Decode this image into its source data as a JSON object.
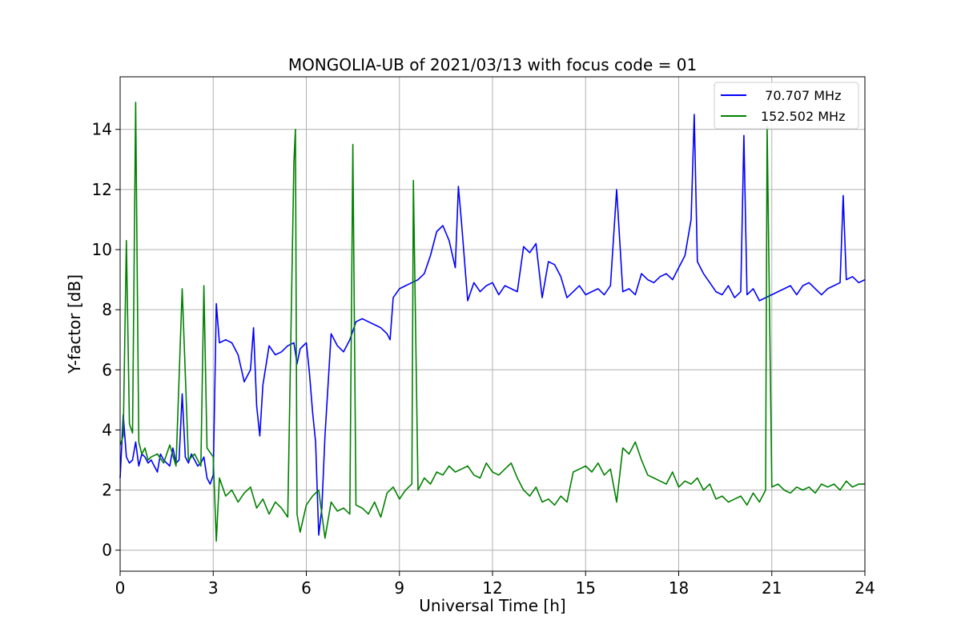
{
  "chart_data": {
    "type": "line",
    "title": "MONGOLIA-UB of 2021/03/13 with focus code = 01",
    "xlabel": "Universal Time [h]",
    "ylabel": "Y-factor [dB]",
    "xlim": [
      0,
      24
    ],
    "ylim": [
      -0.7,
      15.75
    ],
    "xticks": [
      0,
      3,
      6,
      9,
      12,
      15,
      18,
      21,
      24
    ],
    "yticks": [
      0,
      2,
      4,
      6,
      8,
      10,
      12,
      14
    ],
    "grid": true,
    "legend_position": "top-right",
    "series": [
      {
        "name": "  70.707 MHz",
        "color": "#0000ff",
        "x": [
          0.0,
          0.1,
          0.2,
          0.3,
          0.4,
          0.5,
          0.6,
          0.7,
          0.8,
          0.9,
          1.0,
          1.1,
          1.2,
          1.3,
          1.4,
          1.5,
          1.6,
          1.7,
          1.8,
          1.9,
          2.0,
          2.1,
          2.2,
          2.3,
          2.4,
          2.5,
          2.6,
          2.7,
          2.8,
          2.9,
          3.0,
          3.1,
          3.2,
          3.4,
          3.6,
          3.8,
          4.0,
          4.2,
          4.3,
          4.4,
          4.5,
          4.6,
          4.8,
          5.0,
          5.2,
          5.4,
          5.6,
          5.7,
          5.8,
          6.0,
          6.1,
          6.2,
          6.3,
          6.4,
          6.5,
          6.6,
          6.8,
          7.0,
          7.2,
          7.4,
          7.6,
          7.8,
          8.0,
          8.2,
          8.4,
          8.6,
          8.7,
          8.8,
          9.0,
          9.2,
          9.4,
          9.6,
          9.8,
          10.0,
          10.2,
          10.4,
          10.6,
          10.8,
          10.9,
          11.0,
          11.2,
          11.4,
          11.6,
          11.8,
          12.0,
          12.2,
          12.4,
          12.6,
          12.8,
          13.0,
          13.2,
          13.4,
          13.6,
          13.8,
          14.0,
          14.2,
          14.4,
          14.6,
          14.8,
          15.0,
          15.2,
          15.4,
          15.6,
          15.8,
          16.0,
          16.2,
          16.4,
          16.6,
          16.8,
          17.0,
          17.2,
          17.4,
          17.6,
          17.8,
          18.0,
          18.2,
          18.4,
          18.5,
          18.6,
          18.8,
          19.0,
          19.2,
          19.4,
          19.6,
          19.8,
          20.0,
          20.1,
          20.2,
          20.4,
          20.6,
          20.8,
          21.0,
          21.2,
          21.4,
          21.6,
          21.8,
          22.0,
          22.2,
          22.4,
          22.6,
          22.8,
          23.0,
          23.2,
          23.3,
          23.4,
          23.6,
          23.8,
          24.0
        ],
        "y": [
          2.4,
          4.5,
          3.1,
          2.9,
          3.0,
          3.6,
          2.8,
          3.2,
          3.1,
          2.9,
          3.0,
          2.8,
          2.6,
          3.2,
          3.0,
          2.9,
          2.8,
          3.4,
          2.9,
          3.0,
          5.2,
          3.1,
          2.9,
          3.2,
          3.0,
          2.8,
          2.9,
          3.1,
          2.4,
          2.2,
          2.5,
          8.2,
          6.9,
          7.0,
          6.9,
          6.5,
          5.6,
          6.0,
          7.4,
          4.8,
          3.8,
          5.5,
          6.8,
          6.5,
          6.6,
          6.8,
          6.9,
          6.2,
          6.7,
          6.9,
          5.9,
          4.6,
          3.6,
          0.5,
          1.4,
          3.8,
          7.2,
          6.8,
          6.6,
          7.0,
          7.6,
          7.7,
          7.6,
          7.5,
          7.4,
          7.2,
          7.0,
          8.4,
          8.7,
          8.8,
          8.9,
          9.0,
          9.2,
          9.8,
          10.6,
          10.8,
          10.3,
          9.4,
          12.1,
          10.9,
          8.3,
          8.9,
          8.6,
          8.8,
          8.9,
          8.5,
          8.8,
          8.7,
          8.6,
          10.1,
          9.9,
          10.2,
          8.4,
          9.6,
          9.5,
          9.1,
          8.4,
          8.6,
          8.8,
          8.5,
          8.6,
          8.7,
          8.5,
          8.8,
          12.0,
          8.6,
          8.7,
          8.5,
          9.2,
          9.0,
          8.9,
          9.1,
          9.2,
          9.0,
          9.4,
          9.8,
          11.0,
          14.5,
          9.6,
          9.2,
          8.9,
          8.6,
          8.5,
          8.8,
          8.4,
          8.6,
          13.8,
          8.5,
          8.7,
          8.3,
          8.4,
          8.5,
          8.6,
          8.7,
          8.8,
          8.5,
          8.8,
          8.9,
          8.7,
          8.5,
          8.7,
          8.8,
          8.9,
          11.8,
          9.0,
          9.1,
          8.9,
          9.0
        ]
      },
      {
        "name": "152.502 MHz",
        "color": "#008000",
        "x": [
          0.0,
          0.1,
          0.2,
          0.3,
          0.4,
          0.5,
          0.6,
          0.7,
          0.8,
          0.9,
          1.0,
          1.2,
          1.4,
          1.6,
          1.8,
          2.0,
          2.2,
          2.4,
          2.6,
          2.7,
          2.8,
          3.0,
          3.1,
          3.2,
          3.4,
          3.6,
          3.8,
          4.0,
          4.2,
          4.4,
          4.6,
          4.8,
          5.0,
          5.2,
          5.4,
          5.6,
          5.65,
          5.7,
          5.8,
          6.0,
          6.2,
          6.4,
          6.6,
          6.8,
          7.0,
          7.2,
          7.4,
          7.5,
          7.6,
          7.8,
          8.0,
          8.2,
          8.4,
          8.6,
          8.8,
          9.0,
          9.2,
          9.4,
          9.45,
          9.6,
          9.8,
          10.0,
          10.2,
          10.4,
          10.6,
          10.8,
          11.0,
          11.2,
          11.4,
          11.6,
          11.8,
          12.0,
          12.2,
          12.4,
          12.6,
          12.8,
          13.0,
          13.2,
          13.4,
          13.6,
          13.8,
          14.0,
          14.2,
          14.4,
          14.6,
          14.8,
          15.0,
          15.2,
          15.4,
          15.6,
          15.8,
          16.0,
          16.2,
          16.4,
          16.6,
          16.8,
          17.0,
          17.2,
          17.4,
          17.6,
          17.8,
          18.0,
          18.2,
          18.4,
          18.6,
          18.8,
          19.0,
          19.2,
          19.4,
          19.6,
          19.8,
          20.0,
          20.2,
          20.4,
          20.6,
          20.8,
          20.85,
          21.0,
          21.2,
          21.4,
          21.6,
          21.8,
          22.0,
          22.2,
          22.4,
          22.6,
          22.8,
          23.0,
          23.2,
          23.4,
          23.6,
          23.8,
          24.0
        ],
        "y": [
          3.5,
          3.8,
          10.3,
          4.2,
          3.9,
          14.9,
          3.6,
          3.2,
          3.4,
          3.0,
          3.1,
          3.2,
          2.9,
          3.5,
          2.8,
          8.7,
          3.0,
          3.2,
          2.8,
          8.8,
          3.4,
          3.1,
          0.3,
          2.4,
          1.8,
          2.0,
          1.6,
          1.9,
          2.1,
          1.4,
          1.7,
          1.2,
          1.6,
          1.4,
          1.1,
          12.9,
          14.0,
          1.2,
          0.6,
          1.5,
          1.8,
          2.0,
          0.4,
          1.6,
          1.3,
          1.4,
          1.2,
          13.5,
          1.5,
          1.4,
          1.2,
          1.6,
          1.1,
          1.9,
          2.1,
          1.7,
          2.0,
          2.2,
          12.3,
          2.0,
          2.4,
          2.2,
          2.6,
          2.5,
          2.8,
          2.6,
          2.7,
          2.8,
          2.5,
          2.4,
          2.9,
          2.6,
          2.5,
          2.7,
          2.9,
          2.4,
          2.0,
          1.8,
          2.1,
          1.6,
          1.7,
          1.5,
          1.8,
          1.6,
          2.6,
          2.7,
          2.8,
          2.6,
          2.9,
          2.5,
          2.7,
          1.6,
          3.4,
          3.2,
          3.6,
          3.0,
          2.5,
          2.4,
          2.3,
          2.2,
          2.6,
          2.1,
          2.3,
          2.2,
          2.4,
          2.0,
          2.2,
          1.7,
          1.8,
          1.6,
          1.7,
          1.8,
          1.5,
          1.9,
          1.6,
          2.0,
          14.1,
          2.1,
          2.2,
          2.0,
          1.9,
          2.1,
          2.0,
          2.1,
          1.9,
          2.2,
          2.1,
          2.2,
          2.0,
          2.3,
          2.1,
          2.2,
          2.2
        ]
      }
    ]
  }
}
